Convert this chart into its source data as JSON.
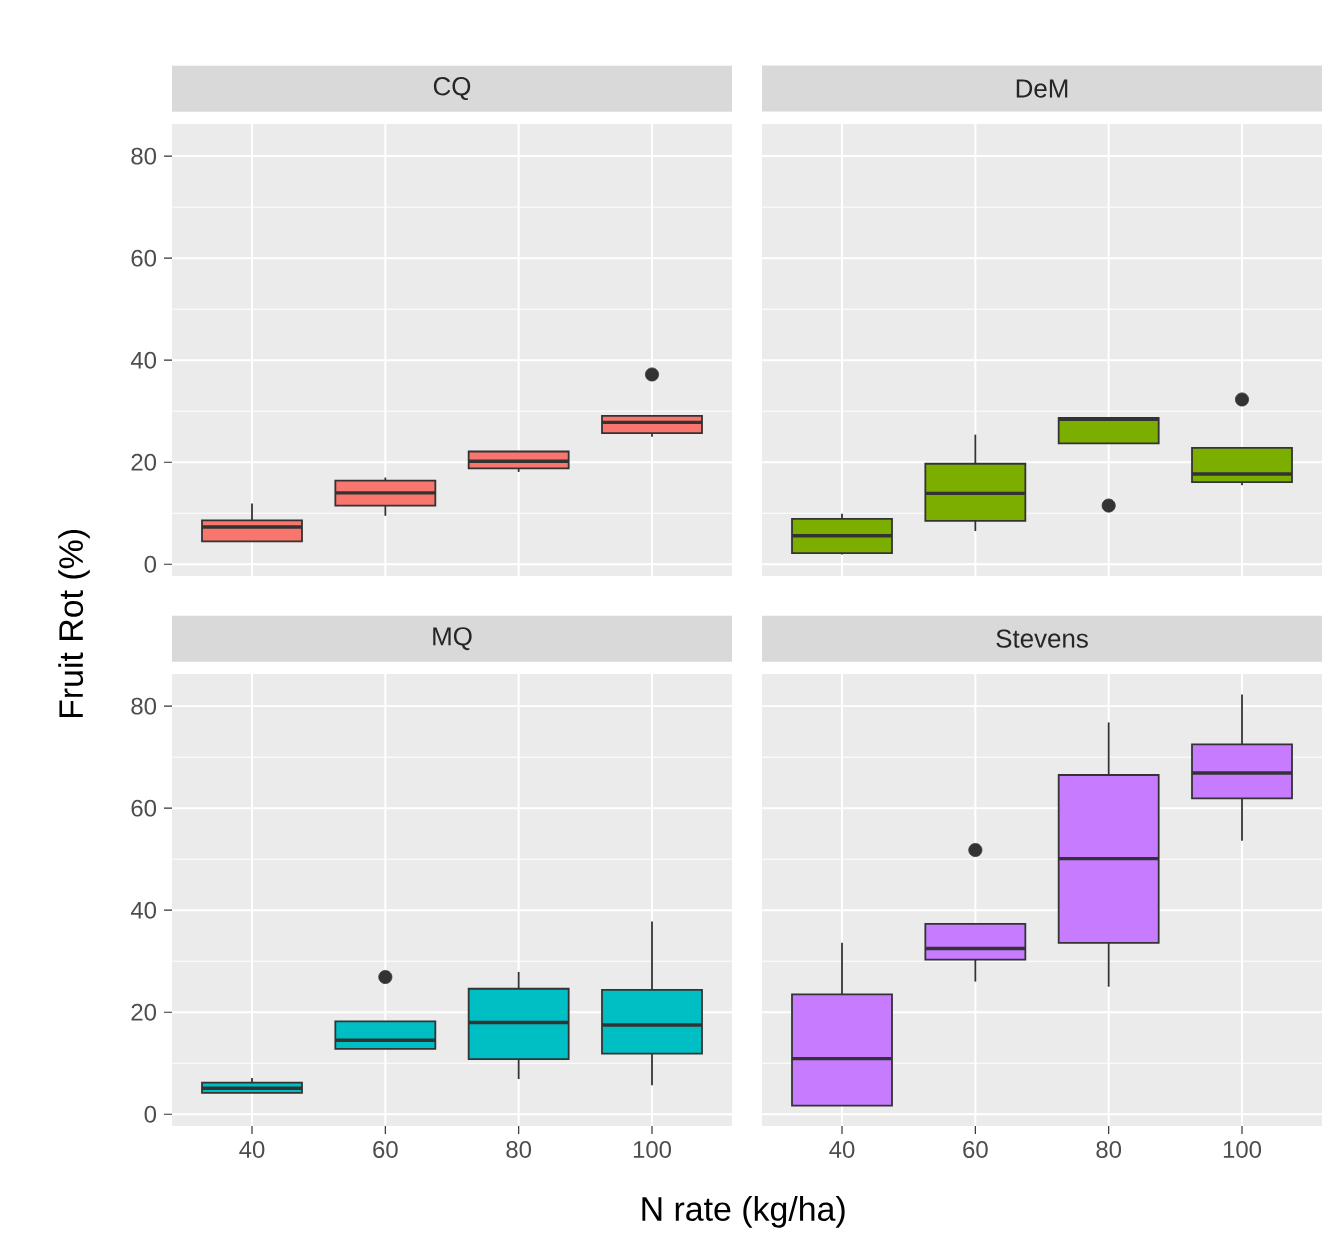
{
  "chart_data": [
    {
      "type": "box",
      "title": "CQ",
      "ylabel": "Fruit Rot (%)",
      "categories": [
        "40",
        "60",
        "80",
        "100"
      ],
      "color": "#f8766d",
      "ylim": [
        -2.3,
        86.3
      ],
      "yticks": [
        0,
        20,
        40,
        60,
        80
      ],
      "grid": true,
      "tick_labels": "y",
      "boxes": [
        {
          "low": 4.5,
          "q1": 4.5,
          "median": 7.3,
          "q3": 8.6,
          "high": 11.9
        },
        {
          "low": 9.5,
          "q1": 11.5,
          "median": 14,
          "q3": 16.4,
          "high": 17
        },
        {
          "low": 18.1,
          "q1": 18.8,
          "median": 20.2,
          "q3": 22.1,
          "high": 22.1
        },
        {
          "low": 25,
          "q1": 25.7,
          "median": 27.8,
          "q3": 29.1,
          "high": 29.1,
          "outliers": [
            37.2
          ]
        }
      ]
    },
    {
      "type": "box",
      "title": "DeM",
      "categories": [
        "40",
        "60",
        "80",
        "100"
      ],
      "color": "#7cae00",
      "ylim": [
        -2.3,
        86.3
      ],
      "yticks": [
        0,
        20,
        40,
        60,
        80
      ],
      "grid": true,
      "tick_labels": false,
      "boxes": [
        {
          "low": 1.9,
          "q1": 2.2,
          "median": 5.6,
          "q3": 8.9,
          "high": 9.9
        },
        {
          "low": 6.5,
          "q1": 8.5,
          "median": 13.9,
          "q3": 19.7,
          "high": 25.4
        },
        {
          "low": 23.7,
          "q1": 23.7,
          "median": 28.4,
          "q3": 28.7,
          "high": 28.7,
          "outliers": [
            11.5
          ]
        },
        {
          "low": 15.5,
          "q1": 16.1,
          "median": 17.7,
          "q3": 22.8,
          "high": 22.8,
          "outliers": [
            32.3
          ]
        }
      ]
    },
    {
      "type": "box",
      "title": "MQ",
      "xlabel": "N rate (kg/ha)",
      "categories": [
        "40",
        "60",
        "80",
        "100"
      ],
      "color": "#00bfc4",
      "ylim": [
        -2.3,
        86.3
      ],
      "yticks": [
        0,
        20,
        40,
        60,
        80
      ],
      "grid": true,
      "boxes": [
        {
          "low": 4.2,
          "q1": 4.2,
          "median": 5.1,
          "q3": 6.2,
          "high": 7.1
        },
        {
          "low": 12.8,
          "q1": 12.8,
          "median": 14.5,
          "q3": 18.2,
          "high": 18.2,
          "outliers": [
            26.9
          ]
        },
        {
          "low": 6.9,
          "q1": 10.8,
          "median": 18,
          "q3": 24.6,
          "high": 27.9
        },
        {
          "low": 5.7,
          "q1": 11.9,
          "median": 17.5,
          "q3": 24.4,
          "high": 37.8
        }
      ]
    },
    {
      "type": "box",
      "title": "Stevens",
      "categories": [
        "40",
        "60",
        "80",
        "100"
      ],
      "color": "#c77cff",
      "ylim": [
        -2.3,
        86.3
      ],
      "yticks": [
        0,
        20,
        40,
        60,
        80
      ],
      "grid": true,
      "tick_labels": "x",
      "boxes": [
        {
          "low": 1.7,
          "q1": 1.7,
          "median": 10.9,
          "q3": 23.5,
          "high": 33.6
        },
        {
          "low": 26,
          "q1": 30.3,
          "median": 32.5,
          "q3": 37.3,
          "high": 37.3,
          "outliers": [
            51.8
          ]
        },
        {
          "low": 25,
          "q1": 33.6,
          "median": 50.1,
          "q3": 66.5,
          "high": 76.8
        },
        {
          "low": 53.6,
          "q1": 61.9,
          "median": 66.9,
          "q3": 72.5,
          "high": 82.3
        }
      ]
    }
  ]
}
